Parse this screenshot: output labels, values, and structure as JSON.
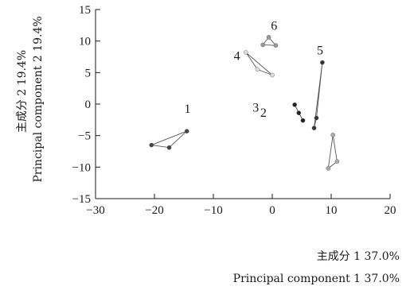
{
  "chart_data": {
    "type": "scatter",
    "xlabel": [
      "主成分 1 37.0%",
      "Principal component 1 37.0%"
    ],
    "ylabel": [
      "主成分 2 19.4%",
      "Principal component 2 19.4%"
    ],
    "xlim": [
      -30,
      20
    ],
    "ylim": [
      -15,
      15
    ],
    "xticks": [
      -30,
      -20,
      -10,
      0,
      10,
      20
    ],
    "yticks": [
      -15,
      -10,
      -5,
      0,
      5,
      10,
      15
    ],
    "grid": false,
    "series": [
      {
        "label": "1",
        "color": "#444444",
        "points": [
          [
            -14.5,
            -4.3
          ],
          [
            -20.5,
            -6.5
          ],
          [
            -17.5,
            -6.9
          ]
        ]
      },
      {
        "label": "2",
        "color": "#222222",
        "points": [
          [
            3.8,
            -0.1
          ],
          [
            4.5,
            -1.4
          ],
          [
            5.2,
            -2.6
          ]
        ]
      },
      {
        "label": "3",
        "color": "#aaaaaa",
        "points": [
          [
            10.3,
            -4.9
          ],
          [
            11.0,
            -9.1
          ],
          [
            9.5,
            -10.2
          ]
        ]
      },
      {
        "label": "4",
        "color": "#dddddd",
        "points": [
          [
            -4.5,
            8.2
          ],
          [
            -2.5,
            5.5
          ],
          [
            0.0,
            4.6
          ]
        ]
      },
      {
        "label": "5",
        "color": "#333333",
        "points": [
          [
            8.5,
            6.6
          ],
          [
            7.5,
            -2.2
          ],
          [
            7.1,
            -3.8
          ]
        ]
      },
      {
        "label": "6",
        "color": "#999999",
        "points": [
          [
            -1.6,
            9.4
          ],
          [
            -0.6,
            10.6
          ],
          [
            0.6,
            9.3
          ]
        ]
      }
    ]
  }
}
